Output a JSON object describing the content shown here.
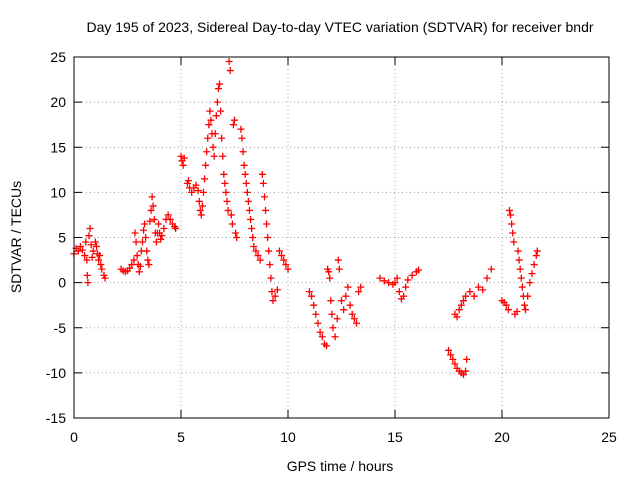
{
  "chart_data": {
    "type": "scatter",
    "title": "Day 195 of 2023, Sidereal Day-to-day VTEC variation (SDTVAR) for receiver bndr",
    "xlabel": "GPS time / hours",
    "ylabel": "SDTVAR / TECUs",
    "xlim": [
      0,
      25
    ],
    "ylim": [
      -15,
      25
    ],
    "xticks": [
      0,
      5,
      10,
      15,
      20,
      25
    ],
    "yticks": [
      -15,
      -10,
      -5,
      0,
      5,
      10,
      15,
      20,
      25
    ],
    "grid": true,
    "marker": "+",
    "color": "#ff0000",
    "series": [
      {
        "points": [
          [
            0.0,
            3.2
          ],
          [
            0.1,
            3.8
          ],
          [
            0.2,
            3.5
          ],
          [
            0.3,
            4.0
          ],
          [
            0.4,
            3.6
          ],
          [
            0.5,
            3.0
          ],
          [
            0.55,
            4.5
          ],
          [
            0.6,
            2.5
          ],
          [
            0.62,
            0.8
          ],
          [
            0.65,
            0.0
          ],
          [
            0.7,
            5.2
          ],
          [
            0.75,
            6.0
          ],
          [
            0.8,
            4.2
          ],
          [
            0.85,
            2.8
          ],
          [
            0.9,
            3.5
          ],
          [
            1.0,
            4.5
          ],
          [
            1.05,
            4.0
          ],
          [
            1.1,
            3.2
          ],
          [
            1.15,
            2.5
          ],
          [
            1.2,
            3.0
          ],
          [
            1.25,
            2.0
          ],
          [
            1.3,
            1.5
          ],
          [
            1.4,
            0.8
          ],
          [
            1.45,
            0.5
          ],
          [
            2.2,
            1.5
          ],
          [
            2.3,
            1.3
          ],
          [
            2.4,
            1.2
          ],
          [
            2.5,
            1.3
          ],
          [
            2.6,
            1.6
          ],
          [
            2.7,
            2.0
          ],
          [
            2.8,
            2.5
          ],
          [
            2.85,
            5.5
          ],
          [
            2.9,
            4.5
          ],
          [
            2.95,
            3.0
          ],
          [
            3.0,
            2.0
          ],
          [
            3.05,
            1.2
          ],
          [
            3.1,
            1.8
          ],
          [
            3.15,
            3.5
          ],
          [
            3.2,
            4.5
          ],
          [
            3.25,
            5.8
          ],
          [
            3.3,
            6.5
          ],
          [
            3.35,
            5.0
          ],
          [
            3.4,
            3.5
          ],
          [
            3.45,
            2.5
          ],
          [
            3.5,
            2.0
          ],
          [
            3.55,
            6.8
          ],
          [
            3.6,
            8.0
          ],
          [
            3.65,
            9.5
          ],
          [
            3.7,
            8.5
          ],
          [
            3.75,
            7.0
          ],
          [
            3.8,
            5.5
          ],
          [
            3.85,
            4.5
          ],
          [
            3.9,
            5.5
          ],
          [
            3.95,
            6.5
          ],
          [
            4.0,
            5.5
          ],
          [
            4.05,
            4.8
          ],
          [
            4.1,
            5.2
          ],
          [
            4.2,
            6.0
          ],
          [
            4.3,
            7.0
          ],
          [
            4.4,
            7.5
          ],
          [
            4.5,
            7.0
          ],
          [
            4.6,
            6.5
          ],
          [
            4.7,
            6.2
          ],
          [
            4.75,
            6.0
          ],
          [
            5.0,
            14.0
          ],
          [
            5.05,
            13.5
          ],
          [
            5.1,
            13.0
          ],
          [
            5.15,
            13.8
          ],
          [
            5.3,
            11.0
          ],
          [
            5.35,
            11.3
          ],
          [
            5.4,
            10.5
          ],
          [
            5.5,
            10.0
          ],
          [
            5.6,
            10.5
          ],
          [
            5.7,
            10.8
          ],
          [
            5.8,
            10.2
          ],
          [
            5.85,
            9.0
          ],
          [
            5.9,
            8.0
          ],
          [
            5.95,
            7.5
          ],
          [
            6.0,
            8.5
          ],
          [
            6.05,
            10.0
          ],
          [
            6.1,
            11.5
          ],
          [
            6.15,
            13.0
          ],
          [
            6.2,
            14.5
          ],
          [
            6.25,
            16.0
          ],
          [
            6.3,
            17.5
          ],
          [
            6.35,
            19.0
          ],
          [
            6.4,
            18.0
          ],
          [
            6.45,
            16.5
          ],
          [
            6.5,
            15.0
          ],
          [
            6.55,
            14.0
          ],
          [
            6.6,
            16.5
          ],
          [
            6.65,
            18.5
          ],
          [
            6.7,
            20.0
          ],
          [
            6.75,
            21.5
          ],
          [
            6.8,
            22.0
          ],
          [
            6.85,
            19.0
          ],
          [
            6.9,
            16.0
          ],
          [
            6.95,
            14.0
          ],
          [
            7.0,
            12.0
          ],
          [
            7.05,
            11.0
          ],
          [
            7.1,
            10.0
          ],
          [
            7.15,
            9.0
          ],
          [
            7.2,
            8.0
          ],
          [
            7.25,
            24.5
          ],
          [
            7.3,
            23.5
          ],
          [
            7.35,
            7.5
          ],
          [
            7.4,
            6.5
          ],
          [
            7.45,
            17.5
          ],
          [
            7.5,
            18.0
          ],
          [
            7.55,
            5.5
          ],
          [
            7.6,
            5.0
          ],
          [
            7.8,
            17.0
          ],
          [
            7.85,
            16.0
          ],
          [
            7.9,
            14.5
          ],
          [
            7.95,
            13.0
          ],
          [
            8.0,
            12.0
          ],
          [
            8.05,
            11.0
          ],
          [
            8.1,
            10.0
          ],
          [
            8.15,
            9.0
          ],
          [
            8.2,
            8.0
          ],
          [
            8.25,
            7.0
          ],
          [
            8.3,
            6.0
          ],
          [
            8.35,
            5.0
          ],
          [
            8.4,
            4.0
          ],
          [
            8.5,
            3.5
          ],
          [
            8.6,
            3.0
          ],
          [
            8.7,
            2.5
          ],
          [
            8.8,
            12.0
          ],
          [
            8.85,
            11.0
          ],
          [
            8.9,
            9.5
          ],
          [
            8.95,
            8.0
          ],
          [
            9.0,
            6.5
          ],
          [
            9.05,
            5.0
          ],
          [
            9.1,
            3.5
          ],
          [
            9.15,
            2.0
          ],
          [
            9.2,
            0.5
          ],
          [
            9.25,
            -1.0
          ],
          [
            9.3,
            -2.0
          ],
          [
            9.4,
            -1.5
          ],
          [
            9.5,
            -0.8
          ],
          [
            9.6,
            3.5
          ],
          [
            9.7,
            3.0
          ],
          [
            9.8,
            2.5
          ],
          [
            9.9,
            2.0
          ],
          [
            10.0,
            1.5
          ],
          [
            11.0,
            -1.0
          ],
          [
            11.1,
            -1.5
          ],
          [
            11.2,
            -2.5
          ],
          [
            11.3,
            -3.5
          ],
          [
            11.4,
            -4.5
          ],
          [
            11.5,
            -5.5
          ],
          [
            11.6,
            -6.0
          ],
          [
            11.7,
            -6.8
          ],
          [
            11.8,
            -7.0
          ],
          [
            11.85,
            1.5
          ],
          [
            11.9,
            1.2
          ],
          [
            11.95,
            0.5
          ],
          [
            12.0,
            -2.0
          ],
          [
            12.05,
            -3.5
          ],
          [
            12.1,
            -5.0
          ],
          [
            12.2,
            -6.0
          ],
          [
            12.3,
            -4.0
          ],
          [
            12.35,
            2.5
          ],
          [
            12.4,
            1.5
          ],
          [
            12.5,
            -2.0
          ],
          [
            12.6,
            -3.0
          ],
          [
            12.7,
            -1.5
          ],
          [
            12.8,
            -0.5
          ],
          [
            12.9,
            -2.5
          ],
          [
            13.0,
            -3.5
          ],
          [
            13.1,
            -4.0
          ],
          [
            13.2,
            -4.5
          ],
          [
            13.3,
            -1.0
          ],
          [
            13.4,
            -0.5
          ],
          [
            14.3,
            0.5
          ],
          [
            14.5,
            0.2
          ],
          [
            14.7,
            0.0
          ],
          [
            14.9,
            -0.2
          ],
          [
            15.0,
            0.0
          ],
          [
            15.1,
            0.5
          ],
          [
            15.2,
            -1.0
          ],
          [
            15.3,
            -1.8
          ],
          [
            15.4,
            -1.5
          ],
          [
            15.5,
            -0.5
          ],
          [
            15.6,
            0.3
          ],
          [
            15.8,
            0.8
          ],
          [
            16.0,
            1.2
          ],
          [
            16.1,
            1.4
          ],
          [
            17.5,
            -7.5
          ],
          [
            17.6,
            -8.0
          ],
          [
            17.7,
            -8.5
          ],
          [
            17.8,
            -9.0
          ],
          [
            17.9,
            -9.5
          ],
          [
            18.0,
            -9.8
          ],
          [
            18.1,
            -10.0
          ],
          [
            18.2,
            -10.2
          ],
          [
            18.3,
            -9.8
          ],
          [
            18.35,
            -8.5
          ],
          [
            17.8,
            -3.5
          ],
          [
            17.9,
            -3.8
          ],
          [
            18.0,
            -3.0
          ],
          [
            18.1,
            -2.5
          ],
          [
            18.2,
            -2.0
          ],
          [
            18.3,
            -1.5
          ],
          [
            18.5,
            -1.0
          ],
          [
            18.7,
            -1.5
          ],
          [
            18.9,
            -0.5
          ],
          [
            19.1,
            -0.8
          ],
          [
            19.3,
            0.5
          ],
          [
            19.5,
            1.5
          ],
          [
            20.0,
            -2.0
          ],
          [
            20.1,
            -2.2
          ],
          [
            20.2,
            -2.5
          ],
          [
            20.3,
            -3.0
          ],
          [
            20.35,
            8.0
          ],
          [
            20.4,
            7.5
          ],
          [
            20.45,
            6.5
          ],
          [
            20.5,
            5.5
          ],
          [
            20.55,
            4.5
          ],
          [
            20.6,
            -3.5
          ],
          [
            20.7,
            -3.2
          ],
          [
            20.75,
            3.5
          ],
          [
            20.8,
            2.5
          ],
          [
            20.85,
            1.5
          ],
          [
            20.9,
            0.5
          ],
          [
            20.95,
            -0.5
          ],
          [
            21.0,
            -1.5
          ],
          [
            21.05,
            -2.5
          ],
          [
            21.1,
            -3.0
          ],
          [
            21.2,
            -1.5
          ],
          [
            21.3,
            0.0
          ],
          [
            21.4,
            1.0
          ],
          [
            21.5,
            2.0
          ],
          [
            21.6,
            3.0
          ],
          [
            21.65,
            3.5
          ]
        ]
      }
    ]
  }
}
